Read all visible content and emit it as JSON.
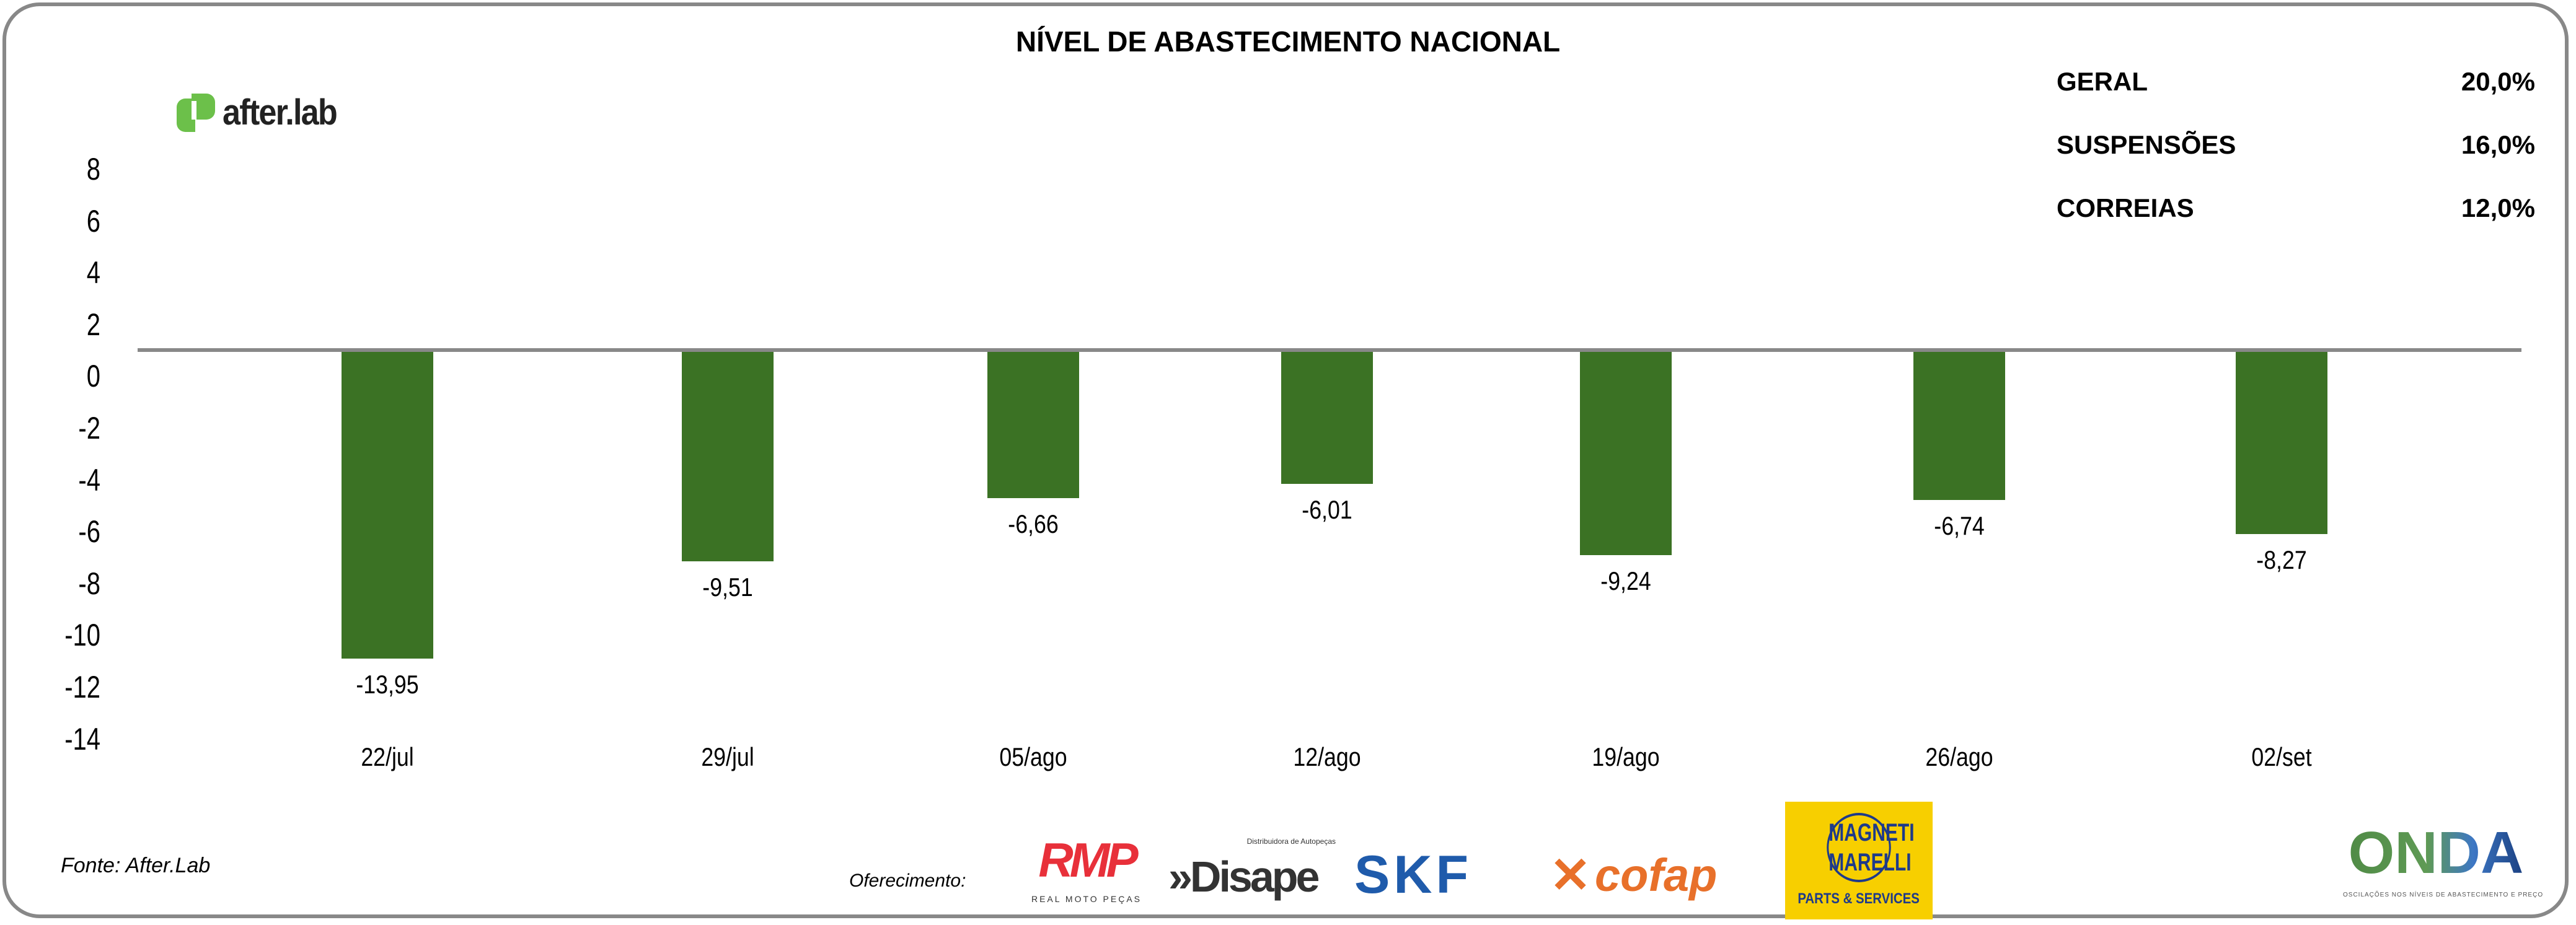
{
  "chart_data": {
    "type": "bar",
    "title": "NÍVEL DE ABASTECIMENTO NACIONAL",
    "categories": [
      "22/jul",
      "29/jul",
      "05/ago",
      "12/ago",
      "19/ago",
      "26/ago",
      "02/set"
    ],
    "values": [
      -13.95,
      -9.51,
      -6.66,
      -6.01,
      -9.24,
      -6.74,
      -8.27
    ],
    "data_labels": [
      "-13,95",
      "-9,51",
      "-6,66",
      "-6,01",
      "-9,24",
      "-6,74",
      "-8,27"
    ],
    "yticks": [
      "8",
      "6",
      "4",
      "2",
      "0",
      "-2",
      "-4",
      "-6",
      "-8",
      "-10",
      "-12",
      "-14"
    ],
    "ylim": [
      -14,
      8
    ],
    "grid": false,
    "bar_color": "#3b7224",
    "xlabel": "",
    "ylabel": ""
  },
  "legend_table": [
    {
      "label": "GERAL",
      "value": "20,0%"
    },
    {
      "label": "SUSPENSÕES",
      "value": "16,0%"
    },
    {
      "label": "CORREIAS",
      "value": "12,0%"
    }
  ],
  "brand": {
    "name": "after.lab",
    "color": "#6cc04a"
  },
  "source": "Fonte: After.Lab",
  "sponsors": {
    "label": "Oferecimento:",
    "logos": [
      {
        "name": "RMP",
        "sub": "REAL MOTO PEÇAS",
        "color": "#e8303a"
      },
      {
        "name": "»Disape",
        "sub": "Distribuidora de Autopeças",
        "color": "#333333"
      },
      {
        "name": "SKF",
        "color": "#1f5bab"
      },
      {
        "name": "cofap",
        "color": "#e8702a"
      },
      {
        "name": "MAGNETI MARELLI",
        "sub": "PARTS & SERVICES",
        "color": "#1e3a8a",
        "bg": "#f7cf00"
      }
    ]
  },
  "onda": {
    "name": "ONDA",
    "tagline": "OSCILAÇÕES NOS NÍVEIS DE ABASTECIMENTO E PREÇO"
  }
}
